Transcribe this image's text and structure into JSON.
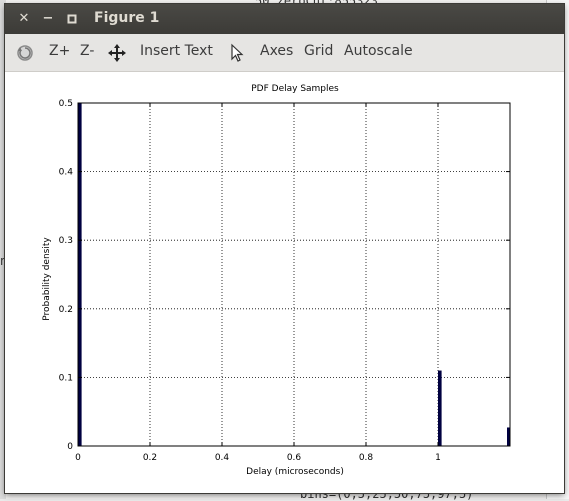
{
  "background": {
    "top_line": "50_zeroCnt:855323",
    "bottom_line": "bins=(0,5,25,50,75,97,5)",
    "left_char": "n"
  },
  "window": {
    "title": "Figure 1",
    "controls": {
      "close_glyph": "✕",
      "minimize_glyph": "−",
      "maximize_glyph": "▫"
    }
  },
  "toolbar": {
    "items": [
      {
        "label": "Z+"
      },
      {
        "label": "Z-"
      },
      {
        "label": "Insert Text"
      },
      {
        "label": "Axes"
      },
      {
        "label": "Grid"
      },
      {
        "label": "Autoscale"
      }
    ],
    "icons": [
      "reset-icon",
      "move-icon",
      "pointer-icon"
    ]
  },
  "chart_data": {
    "type": "bar",
    "title": "PDF Delay Samples",
    "xlabel": "Delay (microseconds)",
    "ylabel": "Probability density",
    "xlim": [
      0,
      1.2
    ],
    "ylim": [
      0,
      0.5
    ],
    "xticks": [
      "0",
      "0.2",
      "0.4",
      "0.6",
      "0.8",
      "1"
    ],
    "xtick_values": [
      0,
      0.2,
      0.4,
      0.6,
      0.8,
      1.0
    ],
    "yticks": [
      "0",
      "0.1",
      "0.2",
      "0.3",
      "0.4",
      "0.5"
    ],
    "ytick_values": [
      0,
      0.1,
      0.2,
      0.3,
      0.4,
      0.5
    ],
    "grid": true,
    "bar_color": "#000040",
    "bars": [
      {
        "x": 0.0,
        "width": 0.01,
        "value": 0.5
      },
      {
        "x": 1.0,
        "width": 0.01,
        "value": 0.11
      },
      {
        "x": 1.195,
        "width": 0.01,
        "value": 0.027
      }
    ]
  }
}
